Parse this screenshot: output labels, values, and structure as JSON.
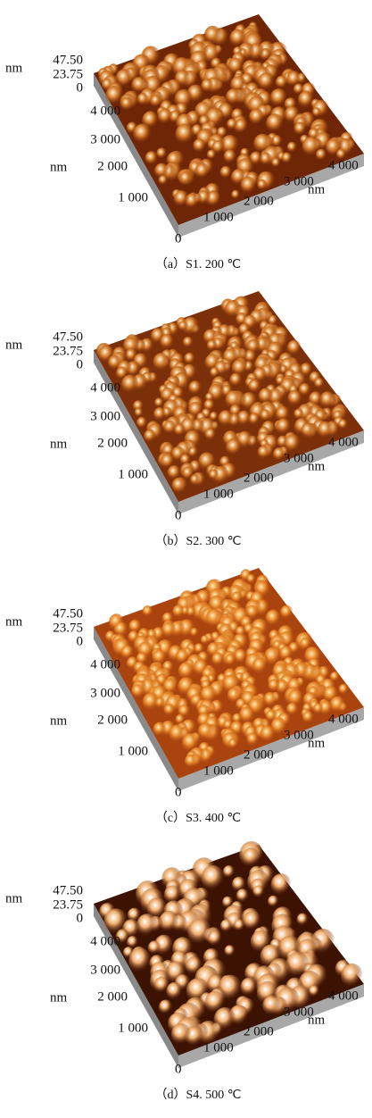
{
  "panels": [
    {
      "z_unit": "nm",
      "z_ticks": [
        "47.50",
        "23.75",
        "0"
      ],
      "y_ticks": [
        "4 000",
        "3 000",
        "2 000",
        "1 000"
      ],
      "y_unit": "nm",
      "origin": "0",
      "x_ticks": [
        "1 000",
        "2 000",
        "3 000",
        "4 000"
      ],
      "x_unit": "nm",
      "caption": "（a）S1. 200 ℃"
    },
    {
      "z_unit": "nm",
      "z_ticks": [
        "47.50",
        "23.75",
        "0"
      ],
      "y_ticks": [
        "4 000",
        "3 000",
        "2 000",
        "1 000"
      ],
      "y_unit": "nm",
      "origin": "0",
      "x_ticks": [
        "1 000",
        "2 000",
        "3 000",
        "4 000"
      ],
      "x_unit": "nm",
      "caption": "（b）S2. 300 ℃"
    },
    {
      "z_unit": "nm",
      "z_ticks": [
        "47.50",
        "23.75",
        "0"
      ],
      "y_ticks": [
        "4 000",
        "3 000",
        "2 000",
        "1 000"
      ],
      "y_unit": "nm",
      "origin": "0",
      "x_ticks": [
        "1 000",
        "2 000",
        "3 000",
        "4 000"
      ],
      "x_unit": "nm",
      "caption": "（c）S3. 400 ℃"
    },
    {
      "z_unit": "nm",
      "z_ticks": [
        "47.50",
        "23.75",
        "0"
      ],
      "y_ticks": [
        "4 000",
        "3 000",
        "2 000",
        "1 000"
      ],
      "y_unit": "nm",
      "origin": "0",
      "x_ticks": [
        "1 000",
        "2 000",
        "3 000",
        "4 000"
      ],
      "x_unit": "nm",
      "caption": "（d）S4. 500 ℃"
    }
  ]
}
